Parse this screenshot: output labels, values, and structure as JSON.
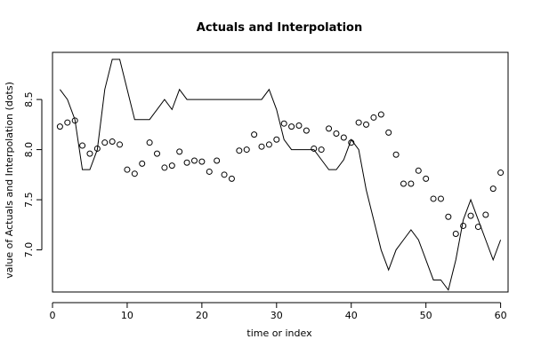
{
  "chart_data": {
    "type": "line",
    "title": "Actuals and Interpolation",
    "xlabel": "time or index",
    "ylabel": "value of Actuals and Interpolation (dots)",
    "xlim": [
      0,
      61
    ],
    "ylim": [
      6.58,
      8.97
    ],
    "x_ticks": [
      0,
      10,
      20,
      30,
      40,
      50,
      60
    ],
    "y_ticks": [
      7.0,
      7.5,
      8.0,
      8.5
    ],
    "grid": false,
    "series": [
      {
        "style": "line",
        "x": [
          1,
          2,
          3,
          4,
          5,
          6,
          7,
          8,
          9,
          10,
          11,
          12,
          13,
          14,
          15,
          16,
          17,
          18,
          19,
          20,
          21,
          22,
          23,
          24,
          25,
          26,
          27,
          28,
          29,
          30,
          31,
          32,
          33,
          34,
          35,
          36,
          37,
          38,
          39,
          40,
          41,
          42,
          43,
          44,
          45,
          46,
          47,
          48,
          49,
          50,
          51,
          52,
          53,
          54,
          55,
          56,
          57,
          58,
          59,
          60
        ],
        "values": [
          8.6,
          8.5,
          8.3,
          7.8,
          7.8,
          8.0,
          8.6,
          8.9,
          8.9,
          8.6,
          8.3,
          8.3,
          8.3,
          8.4,
          8.5,
          8.4,
          8.6,
          8.5,
          8.5,
          8.5,
          8.5,
          8.5,
          8.5,
          8.5,
          8.5,
          8.5,
          8.5,
          8.5,
          8.6,
          8.4,
          8.1,
          8.0,
          8.0,
          8.0,
          8.0,
          7.9,
          7.8,
          7.8,
          7.9,
          8.1,
          8.0,
          7.6,
          7.3,
          7.0,
          6.8,
          7.0,
          7.1,
          7.2,
          7.1,
          6.9,
          6.7,
          6.7,
          6.6,
          6.9,
          7.3,
          7.5,
          7.3,
          7.1,
          6.9,
          7.1
        ]
      },
      {
        "style": "points",
        "x": [
          1,
          2,
          3,
          4,
          5,
          6,
          7,
          8,
          9,
          10,
          11,
          12,
          13,
          14,
          15,
          16,
          17,
          18,
          19,
          20,
          21,
          22,
          23,
          24,
          25,
          26,
          27,
          28,
          29,
          30,
          31,
          32,
          33,
          34,
          35,
          36,
          37,
          38,
          39,
          40,
          41,
          42,
          43,
          44,
          45,
          46,
          47,
          48,
          49,
          50,
          51,
          52,
          53,
          54,
          55,
          56,
          57,
          58,
          59,
          60
        ],
        "values": [
          8.23,
          8.27,
          8.29,
          8.04,
          7.96,
          8.01,
          8.07,
          8.08,
          8.05,
          7.8,
          7.76,
          7.86,
          8.07,
          7.96,
          7.82,
          7.84,
          7.98,
          7.87,
          7.89,
          7.88,
          7.78,
          7.89,
          7.75,
          7.71,
          7.99,
          8.0,
          8.15,
          8.03,
          8.05,
          8.1,
          8.26,
          8.23,
          8.24,
          8.19,
          8.01,
          8.0,
          8.21,
          8.16,
          8.12,
          8.07,
          8.27,
          8.25,
          8.32,
          8.35,
          8.17,
          7.95,
          7.66,
          7.66,
          7.79,
          7.71,
          7.51,
          7.51,
          7.33,
          7.16,
          7.24,
          7.34,
          7.23,
          7.35,
          7.61,
          7.77
        ]
      }
    ]
  }
}
